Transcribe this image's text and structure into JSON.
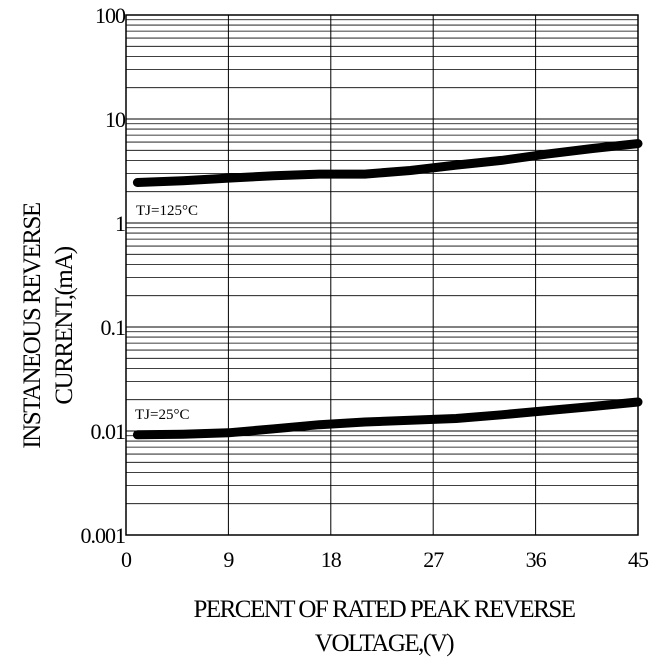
{
  "chart_data": {
    "type": "line",
    "title": "",
    "xlabel_lines": [
      "PERCENT OF RATED PEAK REVERSE",
      "VOLTAGE,(V)"
    ],
    "ylabel_lines": [
      "INSTANEOUS REVERSE",
      "CURRENT,(mA)"
    ],
    "x_ticks": [
      "0",
      "9",
      "18",
      "27",
      "36",
      "45"
    ],
    "x_tick_values": [
      0,
      9,
      18,
      27,
      36,
      45
    ],
    "y_ticks": [
      "0.001",
      "0.01",
      "0.1",
      "1",
      "10",
      "100"
    ],
    "y_tick_values": [
      0.001,
      0.01,
      0.1,
      1,
      10,
      100
    ],
    "xlim": [
      0,
      45
    ],
    "ylim": [
      0.001,
      100
    ],
    "y_scale": "log",
    "grid": true,
    "series": [
      {
        "name": "TJ=125°C",
        "x": [
          1,
          5,
          9,
          13,
          17,
          21,
          25,
          29,
          33,
          37,
          41,
          45
        ],
        "y": [
          2.45,
          2.55,
          2.7,
          2.85,
          2.95,
          2.95,
          3.2,
          3.6,
          4.0,
          4.6,
          5.2,
          5.8
        ]
      },
      {
        "name": "TJ=25°C",
        "x": [
          1,
          5,
          9,
          13,
          17,
          21,
          25,
          29,
          33,
          37,
          41,
          45
        ],
        "y": [
          0.0092,
          0.0093,
          0.0096,
          0.0105,
          0.0115,
          0.0122,
          0.0127,
          0.0132,
          0.0143,
          0.0157,
          0.0172,
          0.019
        ]
      }
    ]
  }
}
